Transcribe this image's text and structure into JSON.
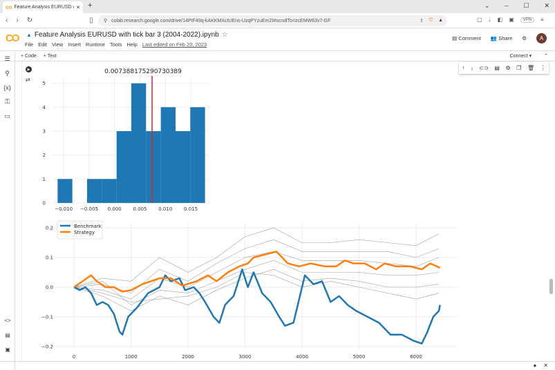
{
  "browser": {
    "tab_title": "Feature Analysis EURUSD with t",
    "url": "colab.research.google.com/drive/14PIF49q-kAKKMXctUEns-UzqPYzuEm2I#scrollTo=zcEMW63v7-GF",
    "vpn": "VPN"
  },
  "header": {
    "title": "Feature Analysis EURUSD with tick bar 3 (2004-2022).ipynb",
    "menus": [
      "File",
      "Edit",
      "View",
      "Insert",
      "Runtime",
      "Tools",
      "Help"
    ],
    "last_edited": "Last edited on Feb 20, 2023",
    "comment": "Comment",
    "share": "Share",
    "avatar": "A"
  },
  "toolbar": {
    "code": "+ Code",
    "text": "+ Text",
    "connect": "Connect"
  },
  "chart_data": [
    {
      "type": "bar",
      "title": "0.007388175290730389",
      "bin_edges": [
        -0.0112,
        -0.0083,
        -0.0054,
        -0.0025,
        0.0004,
        0.0033,
        0.0062,
        0.0091,
        0.012,
        0.0149,
        0.0178
      ],
      "counts": [
        1,
        0,
        1,
        1,
        3,
        5,
        3,
        4,
        3,
        4
      ],
      "vline": 0.007388175290730389,
      "vline_color": "#d62728",
      "bar_color": "#1f77b4",
      "xlim": [
        -0.0122,
        0.0188
      ],
      "ylim": [
        0,
        5.25
      ],
      "xticks": [
        "-0.010",
        "-0.005",
        "0.000",
        "0.005",
        "0.010",
        "0.015"
      ],
      "xtick_values": [
        -0.01,
        -0.005,
        0,
        0.005,
        0.01,
        0.015
      ],
      "yticks": [
        "0",
        "1",
        "2",
        "3",
        "4",
        "5"
      ],
      "grid": true
    },
    {
      "type": "line",
      "xlim": [
        -300,
        6700
      ],
      "ylim": [
        -0.215,
        0.225
      ],
      "xticks": [
        "0",
        "1000",
        "2000",
        "3000",
        "4000",
        "5000",
        "6000"
      ],
      "xtick_values": [
        0,
        1000,
        2000,
        3000,
        4000,
        5000,
        6000
      ],
      "yticks": [
        "0.2",
        "0.1",
        "0.0",
        "−0.1",
        "−0.2"
      ],
      "ytick_values": [
        0.2,
        0.1,
        0,
        -0.1,
        -0.2
      ],
      "legend": "top-left",
      "grid": true,
      "series": [
        {
          "name": "Benchmark",
          "color": "#1f77b4",
          "points": [
            [
              0,
              0
            ],
            [
              100,
              -0.01
            ],
            [
              200,
              0
            ],
            [
              300,
              -0.02
            ],
            [
              400,
              -0.06
            ],
            [
              500,
              -0.05
            ],
            [
              600,
              -0.06
            ],
            [
              700,
              -0.09
            ],
            [
              800,
              -0.15
            ],
            [
              850,
              -0.16
            ],
            [
              950,
              -0.1
            ],
            [
              1100,
              -0.07
            ],
            [
              1300,
              -0.02
            ],
            [
              1500,
              0
            ],
            [
              1600,
              0.04
            ],
            [
              1700,
              0.02
            ],
            [
              1850,
              0.03
            ],
            [
              1950,
              -0.01
            ],
            [
              2100,
              0
            ],
            [
              2200,
              -0.02
            ],
            [
              2300,
              -0.05
            ],
            [
              2450,
              -0.1
            ],
            [
              2550,
              -0.12
            ],
            [
              2650,
              -0.06
            ],
            [
              2800,
              -0.03
            ],
            [
              2900,
              0.03
            ],
            [
              2950,
              0.06
            ],
            [
              3050,
              0
            ],
            [
              3150,
              0.05
            ],
            [
              3300,
              -0.02
            ],
            [
              3450,
              -0.05
            ],
            [
              3600,
              -0.1
            ],
            [
              3700,
              -0.13
            ],
            [
              3850,
              -0.12
            ],
            [
              3950,
              -0.04
            ],
            [
              4050,
              0.04
            ],
            [
              4200,
              0.01
            ],
            [
              4350,
              0.02
            ],
            [
              4500,
              -0.05
            ],
            [
              4650,
              -0.03
            ],
            [
              4800,
              -0.06
            ],
            [
              4950,
              -0.08
            ],
            [
              5150,
              -0.1
            ],
            [
              5350,
              -0.12
            ],
            [
              5550,
              -0.16
            ],
            [
              5750,
              -0.16
            ],
            [
              5950,
              -0.18
            ],
            [
              6100,
              -0.19
            ],
            [
              6200,
              -0.15
            ],
            [
              6300,
              -0.1
            ],
            [
              6400,
              -0.08
            ],
            [
              6420,
              -0.06
            ]
          ]
        },
        {
          "name": "Strategy",
          "color": "#ff7f0e",
          "points": [
            [
              0,
              0
            ],
            [
              150,
              0.02
            ],
            [
              300,
              0.04
            ],
            [
              400,
              0.02
            ],
            [
              550,
              0
            ],
            [
              700,
              0
            ],
            [
              850,
              -0.015
            ],
            [
              1000,
              -0.01
            ],
            [
              1200,
              0.01
            ],
            [
              1500,
              0.03
            ],
            [
              1700,
              0.03
            ],
            [
              1900,
              0.005
            ],
            [
              2150,
              0.02
            ],
            [
              2350,
              0.04
            ],
            [
              2500,
              0.02
            ],
            [
              2700,
              0.05
            ],
            [
              2900,
              0.07
            ],
            [
              3050,
              0.08
            ],
            [
              3150,
              0.1
            ],
            [
              3350,
              0.11
            ],
            [
              3550,
              0.12
            ],
            [
              3750,
              0.08
            ],
            [
              3950,
              0.07
            ],
            [
              4150,
              0.08
            ],
            [
              4400,
              0.07
            ],
            [
              4600,
              0.07
            ],
            [
              4750,
              0.09
            ],
            [
              4900,
              0.08
            ],
            [
              5100,
              0.08
            ],
            [
              5300,
              0.06
            ],
            [
              5450,
              0.08
            ],
            [
              5650,
              0.07
            ],
            [
              5900,
              0.07
            ],
            [
              6100,
              0.06
            ],
            [
              6250,
              0.08
            ],
            [
              6420,
              0.065
            ]
          ]
        }
      ],
      "background_series": [
        [
          [
            0,
            0
          ],
          [
            500,
            0.03
          ],
          [
            1000,
            0.02
          ],
          [
            1500,
            0.1
          ],
          [
            2000,
            0.05
          ],
          [
            2500,
            0.1
          ],
          [
            3000,
            0.17
          ],
          [
            3500,
            0.2
          ],
          [
            4000,
            0.15
          ],
          [
            4500,
            0.15
          ],
          [
            5000,
            0.16
          ],
          [
            5500,
            0.15
          ],
          [
            6000,
            0.14
          ],
          [
            6400,
            0.18
          ]
        ],
        [
          [
            0,
            0
          ],
          [
            500,
            0.01
          ],
          [
            1000,
            -0.02
          ],
          [
            1500,
            0.06
          ],
          [
            2000,
            0.02
          ],
          [
            2500,
            0.08
          ],
          [
            3000,
            0.13
          ],
          [
            3500,
            0.16
          ],
          [
            4000,
            0.12
          ],
          [
            4500,
            0.12
          ],
          [
            5000,
            0.12
          ],
          [
            5500,
            0.12
          ],
          [
            6000,
            0.1
          ],
          [
            6400,
            0.13
          ]
        ],
        [
          [
            0,
            0
          ],
          [
            500,
            -0.01
          ],
          [
            1000,
            -0.04
          ],
          [
            1500,
            0.03
          ],
          [
            2000,
            0
          ],
          [
            2500,
            0.05
          ],
          [
            3000,
            0.1
          ],
          [
            3500,
            0.12
          ],
          [
            4000,
            0.09
          ],
          [
            4500,
            0.09
          ],
          [
            5000,
            0.09
          ],
          [
            5500,
            0.08
          ],
          [
            6000,
            0.07
          ],
          [
            6400,
            0.1
          ]
        ],
        [
          [
            0,
            0
          ],
          [
            500,
            0.02
          ],
          [
            1000,
            -0.06
          ],
          [
            1500,
            -0.01
          ],
          [
            2000,
            -0.02
          ],
          [
            2500,
            0.02
          ],
          [
            3000,
            0.06
          ],
          [
            3500,
            0.09
          ],
          [
            4000,
            0.05
          ],
          [
            4500,
            0.05
          ],
          [
            5000,
            0.05
          ],
          [
            5500,
            0.04
          ],
          [
            6000,
            0.04
          ],
          [
            6400,
            0.05
          ]
        ],
        [
          [
            0,
            0
          ],
          [
            500,
            -0.03
          ],
          [
            1000,
            -0.08
          ],
          [
            1500,
            -0.03
          ],
          [
            2000,
            -0.06
          ],
          [
            2500,
            -0.01
          ],
          [
            3000,
            0.03
          ],
          [
            3500,
            0.06
          ],
          [
            4000,
            0.02
          ],
          [
            4500,
            0.03
          ],
          [
            5000,
            0.02
          ],
          [
            5500,
            0
          ],
          [
            6000,
            0
          ],
          [
            6400,
            0.01
          ]
        ],
        [
          [
            0,
            0
          ],
          [
            500,
            -0.02
          ],
          [
            1000,
            -0.05
          ],
          [
            1500,
            -0.04
          ],
          [
            2000,
            -0.03
          ],
          [
            2500,
            0
          ],
          [
            3000,
            0.05
          ],
          [
            3500,
            0.04
          ],
          [
            4000,
            0
          ],
          [
            4500,
            0.02
          ],
          [
            5000,
            0
          ],
          [
            5500,
            -0.02
          ],
          [
            6000,
            -0.04
          ],
          [
            6400,
            -0.02
          ]
        ]
      ],
      "background_color": "#888888"
    }
  ]
}
